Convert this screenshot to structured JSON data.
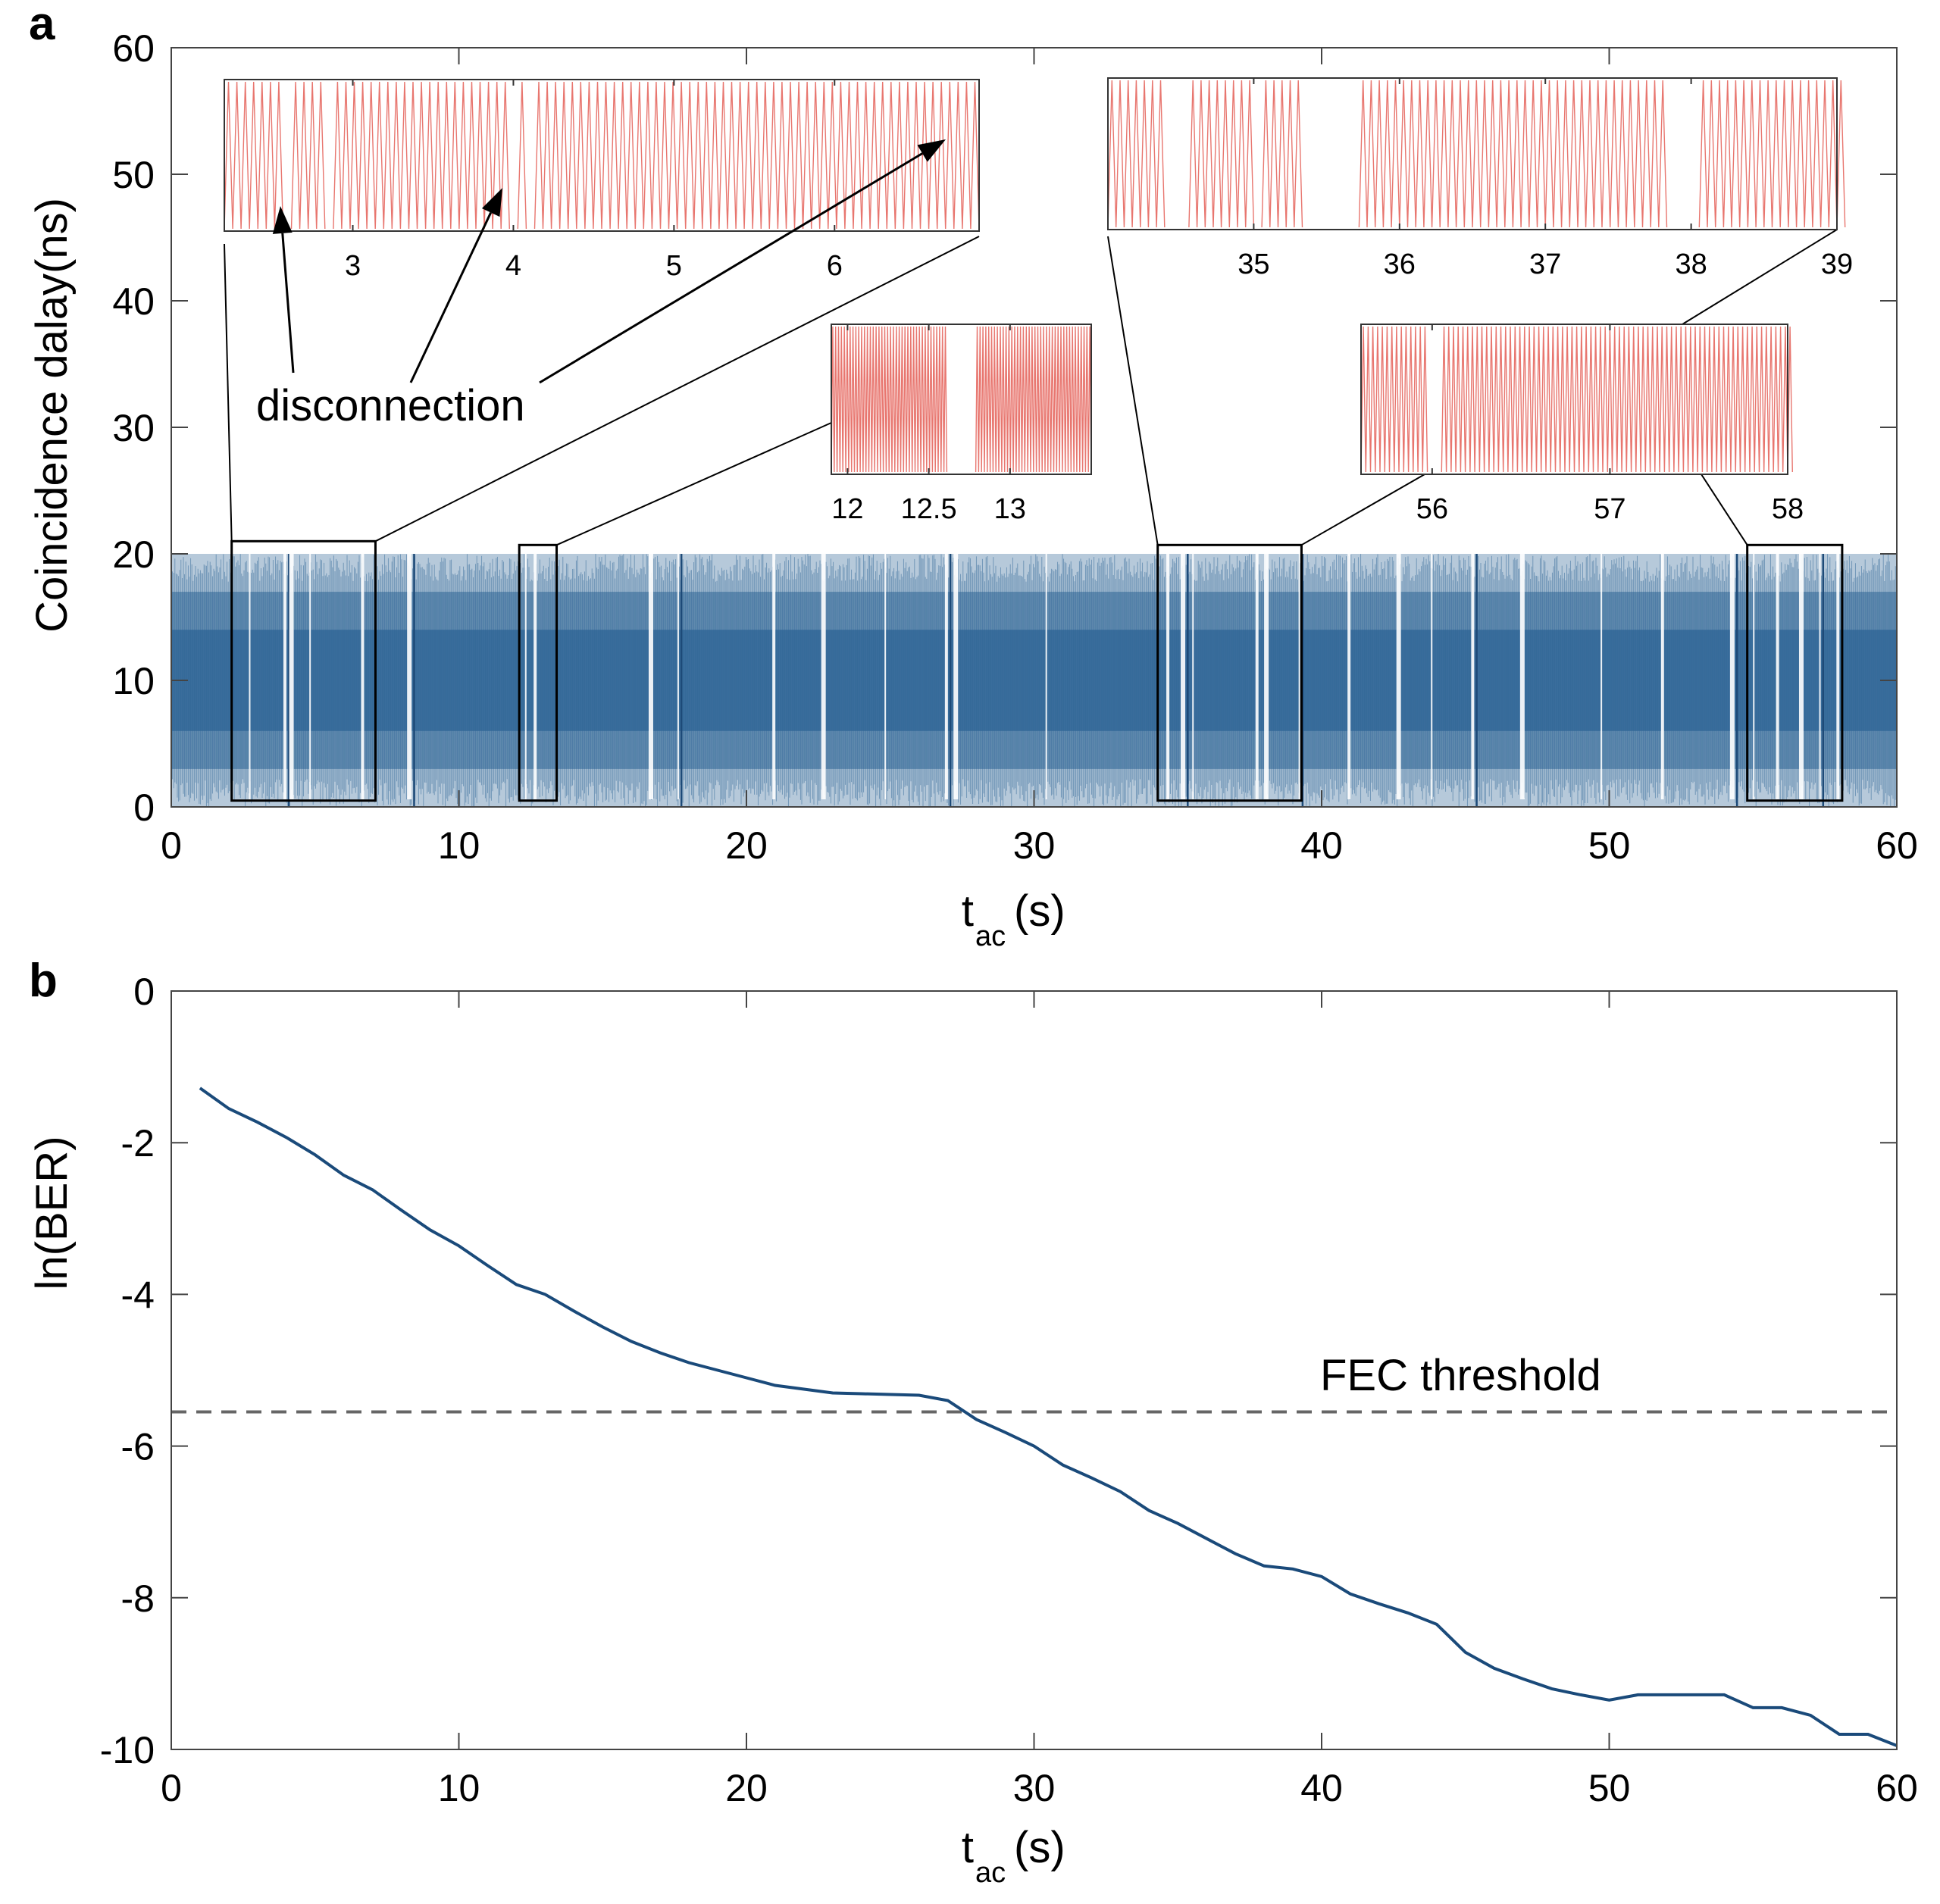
{
  "chart_data": [
    {
      "panel": "a",
      "type": "line",
      "xlabel": "t",
      "xlabel_sub": "ac",
      "xlabel_suffix": "(s)",
      "ylabel": "Coincidence dalay(ns)",
      "xlim": [
        0,
        60
      ],
      "ylim": [
        0,
        60
      ],
      "xticks": [
        0,
        10,
        20,
        30,
        40,
        50,
        60
      ],
      "yticks": [
        0,
        10,
        20,
        30,
        40,
        50,
        60
      ],
      "series": [
        {
          "name": "coincidence delay",
          "color": "#2e6496",
          "description": "dense oscillation between 0 and 20 ns over 0-60 s",
          "y_range": [
            0,
            20
          ],
          "gaps_s": [
            2.7,
            3.9,
            4.1,
            4.8,
            6.6,
            8.2,
            12.3,
            12.6,
            16.6,
            17.6,
            20.9,
            22.6,
            24.8,
            26.9,
            27.2,
            30.4,
            34.6,
            35.1,
            35.5,
            37.7,
            38.0,
            39.2,
            40.9,
            42.6,
            43.8,
            45.2,
            46.9,
            49.7,
            51.8,
            54.2,
            55.0,
            55.8,
            56.6,
            57.3,
            57.9
          ]
        }
      ],
      "zoom_boxes": [
        {
          "x": [
            2.1,
            7.1
          ],
          "y": [
            0.5,
            21
          ]
        },
        {
          "x": [
            12.1,
            13.4
          ],
          "y": [
            0.5,
            20.7
          ]
        },
        {
          "x": [
            34.3,
            39.3
          ],
          "y": [
            0.5,
            20.7
          ]
        },
        {
          "x": [
            54.8,
            58.1
          ],
          "y": [
            0.5,
            20.7
          ]
        }
      ],
      "insets": [
        {
          "xlim": [
            2.2,
            6.9
          ],
          "ticks": [
            "3",
            "4",
            "5",
            "6"
          ],
          "tick_values": [
            3,
            4,
            5,
            6
          ],
          "gaps": [
            [
              2.53,
              2.6
            ],
            [
              2.78,
              2.85
            ],
            [
              3.93,
              3.98
            ],
            [
              4.05,
              4.11
            ]
          ]
        },
        {
          "xlim": [
            11.9,
            13.5
          ],
          "ticks": [
            "12",
            "12.5",
            "13"
          ],
          "tick_values": [
            12,
            12.5,
            13
          ],
          "gaps": [
            [
              12.6,
              12.78
            ]
          ]
        },
        {
          "xlim": [
            34.0,
            39.0
          ],
          "ticks": [
            "35",
            "36",
            "37",
            "38",
            "39"
          ],
          "tick_values": [
            35,
            36,
            37,
            38,
            39
          ],
          "gaps": [
            [
              34.35,
              34.55
            ],
            [
              34.95,
              35.05
            ],
            [
              35.3,
              35.7
            ],
            [
              37.8,
              38.05
            ]
          ]
        },
        {
          "xlim": [
            55.6,
            58.0
          ],
          "ticks": [
            "56",
            "57",
            "58"
          ],
          "tick_values": [
            56,
            57,
            58
          ],
          "gaps": [
            [
              55.95,
              56.05
            ]
          ]
        }
      ],
      "annotation": "disconnection",
      "inset_color": "#e8766f"
    },
    {
      "panel": "b",
      "type": "line",
      "xlabel": "t",
      "xlabel_sub": "ac",
      "xlabel_suffix": "(s)",
      "ylabel": "ln(BER)",
      "xlim": [
        0,
        60
      ],
      "ylim": [
        -10,
        0
      ],
      "xticks": [
        0,
        10,
        20,
        30,
        40,
        50,
        60
      ],
      "yticks": [
        0,
        -2,
        -4,
        -6,
        -8,
        -10
      ],
      "series": [
        {
          "name": "ln(BER)",
          "color": "#1a4a7a",
          "x": [
            1,
            2,
            3,
            4,
            5,
            6,
            7,
            8,
            9,
            10,
            11,
            12,
            13,
            14,
            15,
            16,
            17,
            18,
            19,
            20,
            21,
            22,
            23,
            24,
            25,
            26,
            27,
            28,
            29,
            30,
            31,
            32,
            33,
            34,
            35,
            36,
            37,
            38,
            39,
            40,
            41,
            42,
            43,
            44,
            45,
            46,
            47,
            48,
            49,
            50,
            51,
            52,
            53,
            54,
            55,
            56,
            57,
            58,
            59,
            60
          ],
          "y": [
            -1.28,
            -1.55,
            -1.73,
            -1.93,
            -2.16,
            -2.43,
            -2.62,
            -2.89,
            -3.15,
            -3.36,
            -3.62,
            -3.87,
            -4.0,
            -4.22,
            -4.43,
            -4.62,
            -4.77,
            -4.9,
            -5.0,
            -5.1,
            -5.2,
            -5.25,
            -5.3,
            -5.31,
            -5.32,
            -5.33,
            -5.4,
            -5.65,
            -5.82,
            -6.0,
            -6.25,
            -6.42,
            -6.6,
            -6.85,
            -7.02,
            -7.22,
            -7.42,
            -7.58,
            -7.62,
            -7.72,
            -7.95,
            -8.08,
            -8.2,
            -8.35,
            -8.72,
            -8.93,
            -9.07,
            -9.2,
            -9.28,
            -9.35,
            -9.28,
            -9.28,
            -9.28,
            -9.28,
            -9.45,
            -9.45,
            -9.55,
            -9.8,
            -9.8,
            -9.95
          ]
        }
      ],
      "threshold": {
        "label": "FEC threshold",
        "value": -5.55,
        "color": "#666666"
      }
    }
  ]
}
